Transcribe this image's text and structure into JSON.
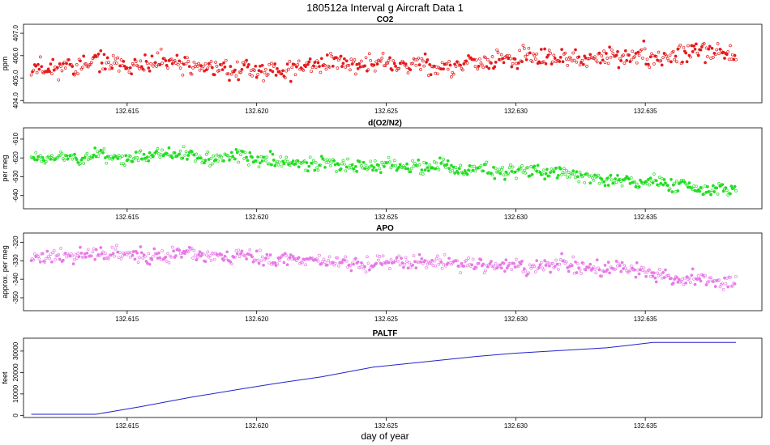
{
  "figure": {
    "title": "180512a   Interval g Aircraft Data 1",
    "xlabel": "day of year"
  },
  "chart_data": [
    {
      "type": "scatter",
      "title": "CO2",
      "ylabel": "ppm",
      "xlim": [
        132.611,
        132.6395
      ],
      "ylim": [
        403.9,
        407.4
      ],
      "xticks": [
        132.615,
        132.62,
        132.625,
        132.63,
        132.635
      ],
      "xtick_labels": [
        "132.615",
        "132.620",
        "132.625",
        "132.630",
        "132.635"
      ],
      "yticks": [
        404.0,
        405.0,
        406.0,
        407.0
      ],
      "ytick_labels": [
        "404.0",
        "405.0",
        "406.0",
        "407.0"
      ],
      "color": "#e41a1c",
      "trend": {
        "x": [
          132.6113,
          132.614,
          132.6165,
          132.6185,
          132.6205,
          132.6225,
          132.6245,
          132.6265,
          132.6285,
          132.6305,
          132.6325,
          132.6345,
          132.6365,
          132.6385
        ],
        "y": [
          405.5,
          405.55,
          405.5,
          405.45,
          405.35,
          405.6,
          405.65,
          405.5,
          405.7,
          405.75,
          405.85,
          405.95,
          406.1,
          406.15
        ]
      },
      "noise": 0.45,
      "n_points": 620,
      "seed": 11
    },
    {
      "type": "scatter",
      "title": "d(O2/N2)",
      "ylabel": "per meg",
      "xlim": [
        132.611,
        132.6395
      ],
      "ylim": [
        -647,
        -604
      ],
      "xticks": [
        132.615,
        132.62,
        132.625,
        132.63,
        132.635
      ],
      "xtick_labels": [
        "132.615",
        "132.620",
        "132.625",
        "132.630",
        "132.635"
      ],
      "yticks": [
        -640,
        -630,
        -620,
        -610
      ],
      "ytick_labels": [
        "-640",
        "-630",
        "-620",
        "-610"
      ],
      "color": "#22dd22",
      "trend": {
        "x": [
          132.6113,
          132.6145,
          132.617,
          132.6195,
          132.622,
          132.6245,
          132.627,
          132.6295,
          132.632,
          132.6345,
          132.637,
          132.6385
        ],
        "y": [
          -619,
          -619,
          -618.5,
          -620,
          -623,
          -624,
          -624.5,
          -626,
          -628,
          -632,
          -636,
          -638
        ]
      },
      "noise": 3.8,
      "n_points": 620,
      "seed": 23
    },
    {
      "type": "scatter",
      "title": "APO",
      "ylabel": "approx. per meg",
      "xlim": [
        132.611,
        132.6395
      ],
      "ylim": [
        -357,
        -315
      ],
      "xticks": [
        132.615,
        132.62,
        132.625,
        132.63,
        132.635
      ],
      "xtick_labels": [
        "132.615",
        "132.620",
        "132.625",
        "132.630",
        "132.635"
      ],
      "yticks": [
        -350,
        -340,
        -330,
        -320
      ],
      "ytick_labels": [
        "-350",
        "-340",
        "-330",
        "-320"
      ],
      "color": "#e87ae8",
      "trend": {
        "x": [
          132.6113,
          132.614,
          132.617,
          132.62,
          132.623,
          132.626,
          132.629,
          132.632,
          132.6345,
          132.637,
          132.6385
        ],
        "y": [
          -327,
          -327,
          -328,
          -329,
          -330,
          -331,
          -332,
          -333,
          -336,
          -339,
          -342
        ]
      },
      "noise": 4.2,
      "n_points": 620,
      "seed": 37
    },
    {
      "type": "line",
      "title": "PALTF",
      "ylabel": "feet",
      "xlim": [
        132.611,
        132.6395
      ],
      "ylim": [
        -1000,
        36000
      ],
      "xticks": [
        132.615,
        132.62,
        132.625,
        132.63,
        132.635
      ],
      "xtick_labels": [
        "132.615",
        "132.620",
        "132.625",
        "132.630",
        "132.635"
      ],
      "yticks": [
        0,
        10000,
        20000,
        30000
      ],
      "ytick_labels": [
        "0",
        "10000",
        "20000",
        "30000"
      ],
      "color": "#2222cc",
      "x": [
        132.6113,
        132.6138,
        132.6155,
        132.6175,
        132.6195,
        132.6208,
        132.6225,
        132.6245,
        132.6265,
        132.6285,
        132.63,
        132.6335,
        132.6353,
        132.6385
      ],
      "y": [
        500,
        500,
        4000,
        8500,
        12500,
        15000,
        18000,
        22500,
        25000,
        27500,
        29000,
        31500,
        34000,
        34000
      ]
    }
  ]
}
